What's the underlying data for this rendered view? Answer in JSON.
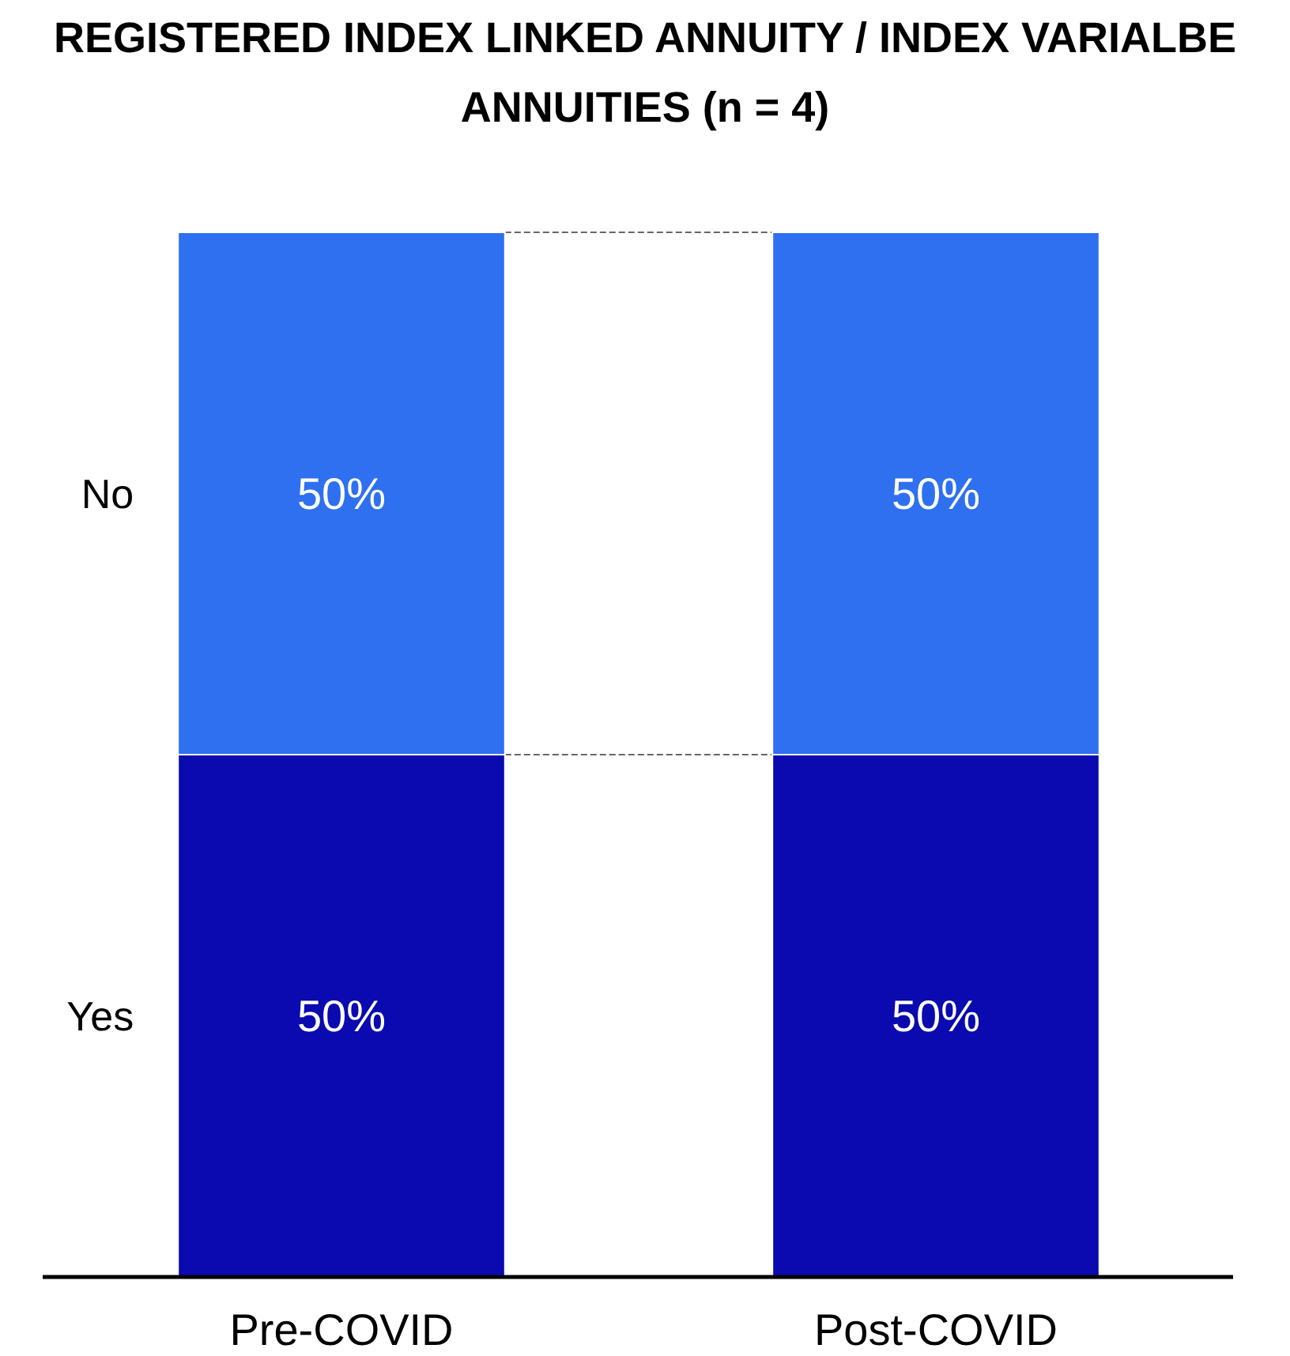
{
  "chart_data": {
    "type": "bar",
    "title": "REGISTERED INDEX LINKED ANNUITY / INDEX VARIALBE ANNUITIES (n = 4)",
    "categories": [
      "Pre-COVID",
      "Post-COVID"
    ],
    "stacked": true,
    "series": [
      {
        "name": "Yes",
        "color": "#0a0ab0",
        "values": [
          50,
          50
        ],
        "value_labels": [
          "50%",
          "50%"
        ]
      },
      {
        "name": "No",
        "color": "#2e70f0",
        "values": [
          50,
          50
        ],
        "value_labels": [
          "50%",
          "50%"
        ]
      }
    ]
  }
}
